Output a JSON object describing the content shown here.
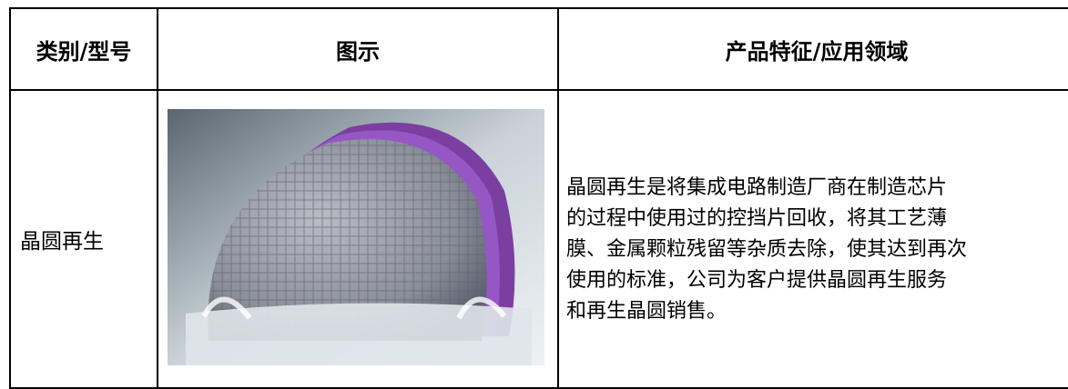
{
  "table": {
    "header": [
      "类别/型号",
      "图示",
      "产品特征/应用领域"
    ],
    "rows": [
      {
        "category": "晶圆再生",
        "description_lines": [
          "晶圆再生是将集成电路制造厂商在制造芯片",
          "的过程中使用过的控挡片回收，将其工艺薄",
          "膜、金属颗粒残留等杂质去除，使其达到再次",
          "使用的标准，公司为客户提供晶圆再生服务",
          "和再生晶圆销售。"
        ]
      }
    ]
  }
}
